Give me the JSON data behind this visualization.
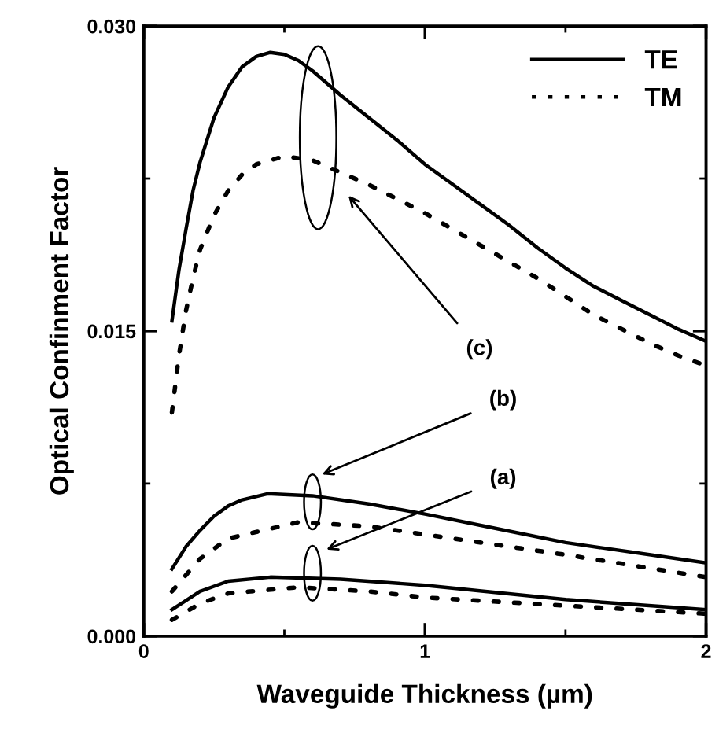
{
  "chart_data": {
    "type": "line",
    "xlabel": "Waveguide Thickness (µm)",
    "ylabel": "Optical Confinment Factor",
    "xlim": [
      0,
      2
    ],
    "ylim": [
      0,
      0.03
    ],
    "xticks": [
      0,
      1,
      2
    ],
    "yticks": [
      {
        "value": 0,
        "label": "0.000"
      },
      {
        "value": 0.015,
        "label": "0.015"
      },
      {
        "value": 0.03,
        "label": "0.030"
      }
    ],
    "grid": false,
    "legend": "top right",
    "marker": "none",
    "series": [
      {
        "name": "TE",
        "color": "#000000",
        "line_style": "solid",
        "x": [
          0.1,
          0.125,
          0.15,
          0.175,
          0.2,
          0.25,
          0.3,
          0.35,
          0.4,
          0.45,
          0.5,
          0.55,
          0.6,
          0.7,
          0.8,
          0.9,
          1.0,
          1.1,
          1.2,
          1.3,
          1.4,
          1.5,
          1.6,
          1.7,
          1.8,
          1.9,
          2.0
        ],
        "values": [
          0.0155,
          0.018,
          0.02,
          0.0219,
          0.0233,
          0.0255,
          0.027,
          0.028,
          0.0285,
          0.0287,
          0.0286,
          0.0283,
          0.0278,
          0.0266,
          0.0255,
          0.0244,
          0.0232,
          0.0222,
          0.0212,
          0.0202,
          0.0191,
          0.0181,
          0.0172,
          0.0165,
          0.0158,
          0.0151,
          0.0145
        ]
      },
      {
        "name": "TM",
        "color": "#000000",
        "line_style": "dotted",
        "x": [
          0.1,
          0.125,
          0.15,
          0.175,
          0.2,
          0.25,
          0.3,
          0.35,
          0.4,
          0.5,
          0.6,
          0.7,
          0.8,
          0.9,
          1.0,
          1.1,
          1.2,
          1.3,
          1.4,
          1.5,
          1.6,
          1.7,
          1.8,
          1.9,
          2.0
        ],
        "values": [
          0.011,
          0.0138,
          0.016,
          0.0176,
          0.019,
          0.0207,
          0.0219,
          0.0227,
          0.0232,
          0.0236,
          0.0234,
          0.0228,
          0.0222,
          0.0215,
          0.0208,
          0.02,
          0.0192,
          0.0184,
          0.0176,
          0.0167,
          0.0158,
          0.0151,
          0.0144,
          0.0138,
          0.0133
        ]
      },
      {
        "color": "#000000",
        "line_style": "solid",
        "x": [
          0.1,
          0.15,
          0.2,
          0.25,
          0.3,
          0.35,
          0.44,
          0.6,
          0.8,
          1.0,
          1.25,
          1.5,
          1.75,
          2.0
        ],
        "values": [
          0.0033,
          0.0044,
          0.0052,
          0.0059,
          0.0064,
          0.0067,
          0.007,
          0.0069,
          0.0065,
          0.006,
          0.0053,
          0.0046,
          0.0041,
          0.0036
        ]
      },
      {
        "color": "#000000",
        "line_style": "dotted",
        "x": [
          0.1,
          0.2,
          0.3,
          0.55,
          0.8,
          1.0,
          1.5,
          2.0
        ],
        "values": [
          0.0022,
          0.0038,
          0.0048,
          0.0056,
          0.0054,
          0.005,
          0.004,
          0.0029
        ]
      },
      {
        "color": "#000000",
        "line_style": "solid",
        "x": [
          0.1,
          0.2,
          0.3,
          0.45,
          0.7,
          1.0,
          1.5,
          2.0
        ],
        "values": [
          0.0013,
          0.0022,
          0.0027,
          0.0029,
          0.0028,
          0.0025,
          0.0018,
          0.0013
        ]
      },
      {
        "color": "#000000",
        "line_style": "dotted",
        "x": [
          0.1,
          0.2,
          0.3,
          0.55,
          0.8,
          1.0,
          1.5,
          2.0
        ],
        "values": [
          0.0008,
          0.0016,
          0.0021,
          0.0024,
          0.0022,
          0.0019,
          0.0015,
          0.0011
        ]
      }
    ],
    "annotations": [
      "(c)",
      "(b)",
      "(a)"
    ]
  }
}
